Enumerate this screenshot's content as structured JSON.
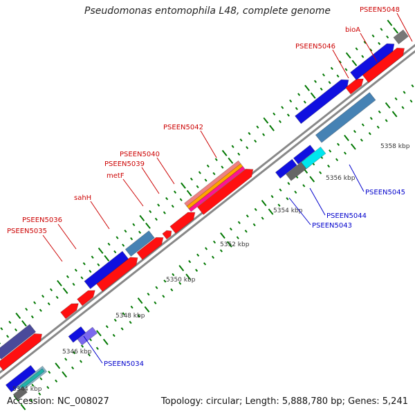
{
  "title": "Pseudomonas entomophila L48, complete genome",
  "accession": "Accession: NC_008027",
  "summary": "Topology: circular; Length: 5,888,780 bp; Genes: 5,241",
  "colors": {
    "backbone": "#888888",
    "tick": "#007700",
    "plus_label": "#cc0000",
    "minus_label": "#0000cc",
    "scale_text": "#333333"
  },
  "scale_labels": [
    "5344 kbp",
    "5346 kbp",
    "5348 kbp",
    "5350 kbp",
    "5352 kbp",
    "5354 kbp",
    "5356 kbp",
    "5358 kbp"
  ],
  "plus_labels": [
    "PSEEN5035",
    "PSEEN5036",
    "sahH",
    "metF",
    "PSEEN5039",
    "PSEEN5040",
    "PSEEN5042",
    "PSEEN5046",
    "bioA",
    "PSEEN5048"
  ],
  "minus_labels": [
    "PSEEN5034",
    "PSEEN5043",
    "PSEEN5044",
    "PSEEN5045"
  ]
}
